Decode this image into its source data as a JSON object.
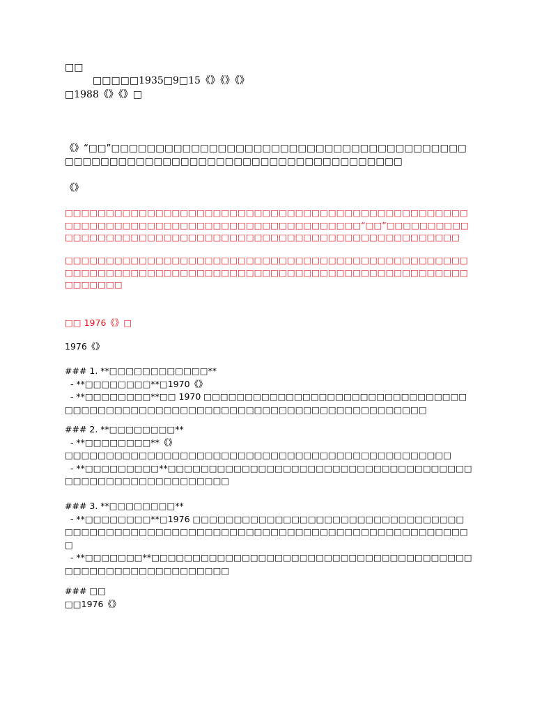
{
  "header": {
    "title": "□□",
    "line1": "□□□□□1935□9□15《》《》《》",
    "line2": "□1988《》《》□"
  },
  "body": {
    "intro": "《》“□□”□□□□□□□□□□□□□□□□□□□□□□□□□□□□□□□□□□□□□□□□□□□□□□□□□□□□□□□□□□□□□□□□□□□□□□□□□□□□□□",
    "book": "《》",
    "red1": "□□□□□□□□□□□□□□□□□□□□□□□□□□□□□□□□□□□□□□□□□□□□□□□□□□□□□□□□□□□□□□□□□□□□□□□□□□□□□□□□□□□□□“□□”□□□□□□□□□□□□□□□□□□□□□□□□□□□□□□□□□□□□□□□□□□□□□□□□□□□□□□□□□□",
    "red2": "□□□□□□□□□□□□□□□□□□□□□□□□□□□□□□□□□□□□□□□□□□□□□□□□□□□□□□□□□□□□□□□□□□□□□□□□□□□□□□□□□□□□□□□□□□□□□□□□□□□□□□□□□",
    "red_heading": "□□ 1976《》□",
    "lead": "1976《》",
    "section1": "### 1. **□□□□□□□□□□□□**\n  - **□□□□□□□□**□1970《》\n  - **□□□□□□□□**□□ 1970 □□□□□□□□□□□□□□□□□□□□□□□□□□□□□□□□□□□□□□□□□□□□□□□□□□□□□□□□□□□□□□□□□□□□□□□□□□□□",
    "section2": "### 2. **□□□□□□□□**\n  - **□□□□□□□□**《》\n□□□□□□□□□□□□□□□□□□□□□□□□□□□□□□□□□□□□□□□□□□□□□□□\n  - **□□□□□□□□□**□□□□□□□□□□□□□□□□□□□□□□□□□□□□□□□□□□□□□□□□□□□□□□□□□□□□□□□□□",
    "section3": "### 3. **□□□□□□□□**\n  - **□□□□□□□□**□1976 □□□□□□□□□□□□□□□□□□□□□□□□□□□□□□□□□□□□□□□□□□□□□□□□□□□□□□□□□□□□□□□□□□□□□□□□□□□□□□□□□□□\n  - **□□□□□□□**□□□□□□□□□□□□□□□□□□□□□□□□□□□□□□□□□□□□□□□□□□□□□□□□□□□□□□□□□□□",
    "conclusion": "### □□\n□□1976《》"
  }
}
